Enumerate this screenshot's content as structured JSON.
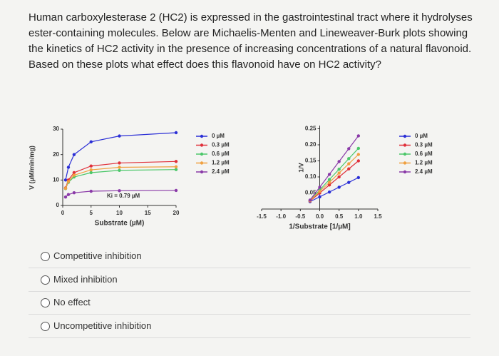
{
  "question": "Human carboxylesterase 2 (HC2) is expressed in the gastrointestinal tract where it hydrolyses ester-containing molecules. Below are Michaelis-Menten and Lineweaver-Burk plots showing the kinetics of HC2 activity in the presence of increasing concentrations of a natural flavonoid. Based on these plots what effect does this flavonoid have on HC2 activity?",
  "chart_data": [
    {
      "type": "line",
      "ylabel": "V (µM/min/mg)",
      "xlabel": "Substrate (µM)",
      "annotation": "Ki = 0.79 µM",
      "x": [
        0.5,
        1,
        2,
        5,
        10,
        20
      ],
      "xlim": [
        0,
        20
      ],
      "xticks": [
        0,
        5,
        10,
        15,
        20
      ],
      "ylim": [
        0,
        30
      ],
      "yticks": [
        0,
        10,
        20,
        30
      ],
      "series": [
        {
          "name": "0 µM",
          "color": "#2b2fd6",
          "values": [
            10,
            15,
            20,
            25,
            27.3,
            28.6
          ]
        },
        {
          "name": "0.3 µM",
          "color": "#e0303a",
          "values": [
            6.9,
            10,
            12.9,
            15.5,
            16.7,
            17.3
          ]
        },
        {
          "name": "0.6 µM",
          "color": "#4cc76a",
          "values": [
            6.6,
            9.1,
            11.2,
            12.9,
            13.8,
            14.1
          ]
        },
        {
          "name": "1.2 µM",
          "color": "#f0a040",
          "values": [
            6.7,
            9.4,
            11.9,
            14.0,
            15.0,
            15.2
          ]
        },
        {
          "name": "2.4 µM",
          "color": "#8a3aa8",
          "values": [
            3.3,
            4.3,
            5.0,
            5.6,
            5.8,
            5.9
          ]
        }
      ]
    },
    {
      "type": "line",
      "ylabel": "1/V",
      "xlabel": "1/Substrate [1/µM]",
      "x": [
        -0.25,
        0,
        0.25,
        0.5,
        0.75,
        1.0
      ],
      "xlim": [
        -1.5,
        1.5
      ],
      "xticks": [
        -1.5,
        {
          "value": -1.0,
          "label": "-1.0"
        },
        -0.5,
        {
          "value": 0.0,
          "label": "0.0"
        },
        0.5,
        {
          "value": 1.0,
          "label": "1.0"
        },
        1.5
      ],
      "ylim": [
        0,
        0.26
      ],
      "yticks": [
        0.05,
        {
          "value": 0.1,
          "label": "0.10"
        },
        0.15,
        {
          "value": 0.2,
          "label": "0.20"
        },
        0.25
      ],
      "series": [
        {
          "name": "0 µM",
          "color": "#2b2fd6",
          "values": [
            0.023,
            0.038,
            0.053,
            0.068,
            0.083,
            0.098
          ]
        },
        {
          "name": "0.3 µM",
          "color": "#e0303a",
          "values": [
            0.025,
            0.05,
            0.075,
            0.1,
            0.125,
            0.15
          ]
        },
        {
          "name": "0.6 µM",
          "color": "#4cc76a",
          "values": [
            0.027,
            0.059,
            0.092,
            0.124,
            0.157,
            0.189
          ]
        },
        {
          "name": "1.2 µM",
          "color": "#f0a040",
          "values": [
            0.026,
            0.055,
            0.083,
            0.112,
            0.141,
            0.17
          ]
        },
        {
          "name": "2.4 µM",
          "color": "#8a3aa8",
          "values": [
            0.028,
            0.068,
            0.108,
            0.148,
            0.188,
            0.228
          ]
        }
      ]
    }
  ],
  "options": [
    "Competitive inhibition",
    "Mixed inhibition",
    "No effect",
    "Uncompetitive inhibition"
  ]
}
